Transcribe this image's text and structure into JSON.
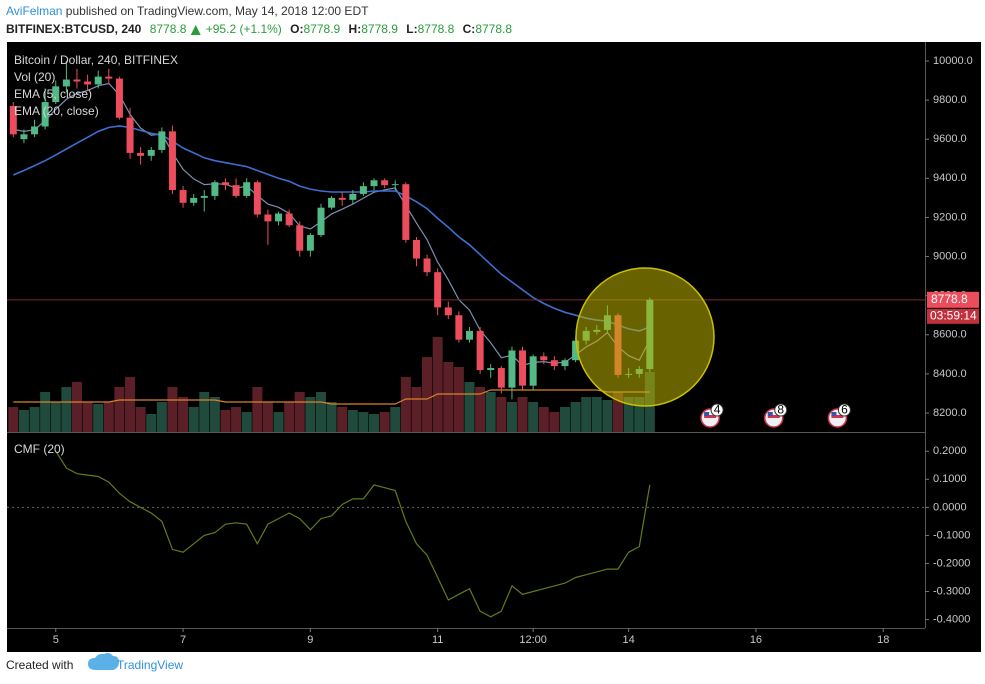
{
  "header": {
    "author": "AviFelman",
    "published": " published on TradingView.com, May 14, 2018 12:00 EDT",
    "symbol": "BITFINEX:BTCUSD, 240",
    "last": "8778.8",
    "change": "+95.2 (+1.1%)",
    "ohlc": [
      {
        "label": "O:",
        "value": "8778.9"
      },
      {
        "label": "H:",
        "value": "8778.9"
      },
      {
        "label": "L:",
        "value": "8778.8"
      },
      {
        "label": "C:",
        "value": "8778.8"
      }
    ]
  },
  "chart_data": [
    {
      "type": "candlestick",
      "title": "Bitcoin / Dollar, 240, BITFINEX",
      "x": [
        4.333,
        4.5,
        4.667,
        4.833,
        5,
        5.167,
        5.333,
        5.5,
        5.667,
        5.833,
        6,
        6.167,
        6.333,
        6.5,
        6.667,
        6.833,
        7,
        7.167,
        7.333,
        7.5,
        7.667,
        7.833,
        8,
        8.167,
        8.333,
        8.5,
        8.667,
        8.833,
        9,
        9.167,
        9.333,
        9.5,
        9.667,
        9.833,
        10,
        10.167,
        10.333,
        10.5,
        10.667,
        10.833,
        11,
        11.167,
        11.333,
        11.5,
        11.667,
        11.833,
        12,
        12.167,
        12.333,
        12.5,
        12.667,
        12.833,
        13,
        13.167,
        13.333,
        13.5,
        13.667,
        13.833,
        14,
        14.167,
        14.333
      ],
      "open": [
        9770,
        9600,
        9625,
        9665,
        9790,
        9870,
        9905,
        9895,
        9880,
        9920,
        9910,
        9710,
        9530,
        9515,
        9545,
        9640,
        9340,
        9275,
        9300,
        9310,
        9380,
        9365,
        9310,
        9380,
        9215,
        9180,
        9220,
        9160,
        9030,
        9110,
        9250,
        9300,
        9290,
        9320,
        9360,
        9390,
        9365,
        9370,
        9085,
        8990,
        8920,
        8740,
        8700,
        8575,
        8620,
        8420,
        8430,
        8330,
        8520,
        8340,
        8490,
        8470,
        8440,
        8470,
        8570,
        8615,
        8625,
        8700,
        8395,
        8400,
        8425
      ],
      "high": [
        9790,
        9650,
        9700,
        9860,
        9900,
        10000,
        9960,
        9930,
        9950,
        9960,
        9920,
        9760,
        9560,
        9560,
        9660,
        9670,
        9360,
        9320,
        9340,
        9390,
        9400,
        9400,
        9400,
        9390,
        9240,
        9230,
        9240,
        9180,
        9120,
        9270,
        9310,
        9330,
        9340,
        9380,
        9400,
        9400,
        9390,
        9380,
        9100,
        9010,
        8940,
        8770,
        8720,
        8640,
        8640,
        8450,
        8440,
        8540,
        8540,
        8500,
        8510,
        8490,
        8480,
        8590,
        8640,
        8650,
        8750,
        8710,
        8430,
        8440,
        8790
      ],
      "low": [
        9610,
        9580,
        9610,
        9650,
        9780,
        9840,
        9860,
        9850,
        9860,
        9880,
        9700,
        9500,
        9470,
        9490,
        9530,
        9320,
        9250,
        9260,
        9230,
        9290,
        9340,
        9300,
        9300,
        9200,
        9060,
        9160,
        9150,
        9000,
        9000,
        9100,
        9240,
        9260,
        9270,
        9310,
        9340,
        9350,
        9340,
        9070,
        8950,
        8900,
        8700,
        8680,
        8560,
        8560,
        8400,
        8380,
        8300,
        8270,
        8320,
        8320,
        8450,
        8420,
        8420,
        8460,
        8550,
        8600,
        8610,
        8380,
        8380,
        8380,
        8410
      ],
      "close": [
        9625,
        9625,
        9665,
        9790,
        9870,
        9905,
        9895,
        9880,
        9920,
        9910,
        9710,
        9530,
        9515,
        9545,
        9640,
        9340,
        9275,
        9300,
        9310,
        9380,
        9365,
        9310,
        9380,
        9215,
        9180,
        9220,
        9160,
        9030,
        9110,
        9250,
        9300,
        9290,
        9320,
        9360,
        9390,
        9365,
        9370,
        9085,
        8990,
        8920,
        8740,
        8700,
        8575,
        8620,
        8420,
        8430,
        8330,
        8520,
        8340,
        8490,
        8470,
        8440,
        8470,
        8570,
        8620,
        8625,
        8700,
        8395,
        8400,
        8425,
        8778.8
      ],
      "volume": [
        25,
        22,
        25,
        40,
        30,
        45,
        50,
        30,
        28,
        30,
        45,
        55,
        25,
        18,
        30,
        45,
        35,
        25,
        40,
        35,
        22,
        25,
        20,
        45,
        30,
        20,
        30,
        40,
        35,
        40,
        30,
        25,
        22,
        20,
        18,
        20,
        25,
        55,
        45,
        75,
        95,
        70,
        65,
        50,
        45,
        40,
        35,
        30,
        35,
        30,
        25,
        20,
        25,
        30,
        35,
        35,
        32,
        40,
        35,
        35,
        60
      ],
      "volume_lim": [
        0,
        390
      ],
      "indicators": [
        {
          "name": "Vol (20)",
          "color": "#d9822b",
          "axis": "volume",
          "values": [
            30,
            30,
            30,
            30,
            30,
            30,
            30,
            30,
            30,
            30,
            32,
            32,
            32,
            32,
            32,
            32,
            32,
            32,
            32,
            32,
            30,
            30,
            30,
            30,
            30,
            30,
            30,
            30,
            30,
            30,
            28,
            28,
            28,
            28,
            28,
            28,
            28,
            33,
            33,
            33,
            38,
            38,
            38,
            38,
            38,
            42,
            42,
            42,
            42,
            42,
            42,
            42,
            42,
            42,
            42,
            42,
            40,
            40,
            40,
            40,
            40
          ]
        },
        {
          "name": "EMA (5, close)",
          "color": "#7d8fb0",
          "values": [
            9650,
            9640,
            9648,
            9695,
            9753,
            9804,
            9834,
            9849,
            9873,
            9885,
            9827,
            9728,
            9657,
            9620,
            9627,
            9531,
            9446,
            9397,
            9368,
            9372,
            9370,
            9350,
            9360,
            9312,
            9268,
            9252,
            9221,
            9157,
            9141,
            9177,
            9218,
            9242,
            9268,
            9299,
            9329,
            9341,
            9351,
            9262,
            9171,
            9087,
            8971,
            8881,
            8779,
            8726,
            8624,
            8559,
            8483,
            8495,
            8443,
            8459,
            8463,
            8455,
            8460,
            8497,
            8538,
            8567,
            8611,
            8539,
            8493,
            8470,
            8573
          ]
        },
        {
          "name": "EMA (20, close)",
          "color": "#3d6fcf",
          "values": [
            9417,
            9440,
            9465,
            9490,
            9520,
            9550,
            9580,
            9610,
            9640,
            9660,
            9668,
            9660,
            9645,
            9630,
            9620,
            9590,
            9555,
            9530,
            9505,
            9490,
            9480,
            9470,
            9460,
            9440,
            9420,
            9400,
            9385,
            9360,
            9345,
            9335,
            9330,
            9330,
            9330,
            9330,
            9335,
            9335,
            9335,
            9310,
            9280,
            9245,
            9195,
            9150,
            9100,
            9060,
            9010,
            8960,
            8910,
            8870,
            8830,
            8790,
            8760,
            8735,
            8715,
            8700,
            8685,
            8675,
            8670,
            8650,
            8630,
            8620,
            8640
          ]
        }
      ],
      "up_color": "#53b987",
      "down_color": "#eb4d5c",
      "up_volume_color": "#1f4a3c",
      "down_volume_color": "#5b1f28",
      "xlim": [
        4.234,
        18.656
      ],
      "xticks": [
        5,
        7,
        9,
        11,
        {
          "value": 12.5,
          "label": "12:00"
        },
        14,
        16,
        18
      ],
      "ylim": [
        8103,
        10097
      ],
      "yticks": [
        {
          "value": 8200,
          "label": "8200.0"
        },
        {
          "value": 8400,
          "label": "8400.0"
        },
        {
          "value": 8600,
          "label": "8600.0"
        },
        {
          "value": 8800,
          "label": "8800.0"
        },
        {
          "value": 9000,
          "label": "9000.0"
        },
        {
          "value": 9200,
          "label": "9200.0"
        },
        {
          "value": 9400,
          "label": "9400.0"
        },
        {
          "value": 9600,
          "label": "9600.0"
        },
        {
          "value": 9800,
          "label": "9800.0"
        },
        {
          "value": 10000,
          "label": "10000.0"
        }
      ],
      "countdown": "03:59:14",
      "events": [
        {
          "x": 15.28,
          "label": "4"
        },
        {
          "x": 16.28,
          "label": "8"
        },
        {
          "x": 17.28,
          "label": "6"
        }
      ]
    },
    {
      "type": "line",
      "name": "CMF (20)",
      "color": "#5f7d1a",
      "values": [
        null,
        null,
        null,
        null,
        0.2,
        0.14,
        0.12,
        0.115,
        0.11,
        0.09,
        0.05,
        0.02,
        0.0,
        -0.02,
        -0.05,
        -0.15,
        -0.16,
        -0.13,
        -0.1,
        -0.09,
        -0.06,
        -0.055,
        -0.06,
        -0.13,
        -0.06,
        -0.04,
        -0.02,
        -0.04,
        -0.08,
        -0.04,
        -0.03,
        0.01,
        0.03,
        0.03,
        0.08,
        0.07,
        0.06,
        -0.05,
        -0.13,
        -0.17,
        -0.25,
        -0.33,
        -0.31,
        -0.29,
        -0.37,
        -0.39,
        -0.37,
        -0.28,
        -0.31,
        -0.3,
        -0.29,
        -0.28,
        -0.27,
        -0.25,
        -0.24,
        -0.23,
        -0.22,
        -0.22,
        -0.16,
        -0.14,
        0.08
      ],
      "ylim": [
        -0.43,
        0.265
      ],
      "yticks": [
        {
          "value": 0.2,
          "label": "0.2000"
        },
        {
          "value": 0.1,
          "label": "0.1000"
        },
        {
          "value": 0,
          "label": "0.0000"
        },
        {
          "value": -0.1,
          "label": "-0.1000"
        },
        {
          "value": -0.2,
          "label": "-0.2000"
        },
        {
          "value": -0.3,
          "label": "-0.3000"
        },
        {
          "value": -0.4,
          "label": "-0.4000"
        }
      ]
    }
  ],
  "footer": {
    "created": "Created with",
    "brand": "TradingView"
  }
}
